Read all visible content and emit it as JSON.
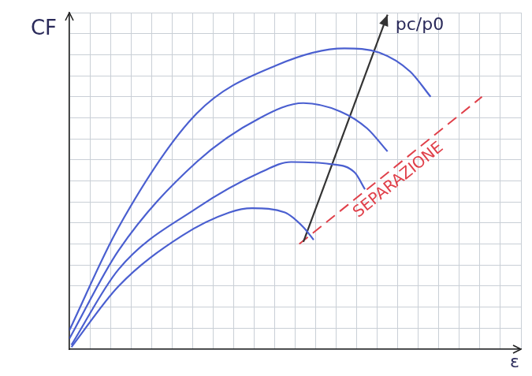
{
  "chart_data": {
    "type": "line",
    "x_label": "ε",
    "y_label": "CF",
    "xlim": [
      0,
      22
    ],
    "ylim": [
      0,
      16
    ],
    "xticks": [
      0,
      1,
      2,
      3,
      4,
      5,
      6,
      7,
      8,
      9,
      10,
      11,
      12,
      13,
      14,
      15,
      16,
      17,
      18,
      19,
      20,
      21,
      22
    ],
    "yticks": [
      0,
      1,
      2,
      3,
      4,
      5,
      6,
      7,
      8,
      9,
      10,
      11,
      12,
      13,
      14,
      15,
      16
    ],
    "grid": true,
    "tick_labels": false,
    "series": [
      {
        "color": "#4a5fd0",
        "x": [
          0,
          2.4,
          6.2,
          10.1,
          13.4,
          15.1,
          16.6,
          17.6
        ],
        "values": [
          0.9,
          5.8,
          11.2,
          13.5,
          14.3,
          14.1,
          13.2,
          12.0
        ]
      },
      {
        "color": "#4a5fd0",
        "x": [
          0,
          2.4,
          6.2,
          9.3,
          11.4,
          13.2,
          14.5,
          15.5
        ],
        "values": [
          0.5,
          4.7,
          8.9,
          11.0,
          11.7,
          11.3,
          10.5,
          9.4
        ]
      },
      {
        "color": "#4a5fd0",
        "x": [
          0.1,
          2.4,
          6.2,
          9.3,
          10.8,
          12.7,
          13.9,
          14.4
        ],
        "values": [
          0.2,
          3.8,
          6.7,
          8.4,
          8.9,
          8.8,
          8.4,
          7.6
        ]
      },
      {
        "color": "#4a5fd0",
        "x": [
          0.1,
          2.4,
          5.5,
          7.8,
          8.9,
          10.5,
          11.4,
          11.9
        ],
        "values": [
          0.1,
          3.0,
          5.4,
          6.5,
          6.7,
          6.5,
          5.8,
          5.2
        ]
      },
      {
        "name": "pc/p0",
        "color": "#333333",
        "marker": "arrow",
        "x": [
          11.4,
          15.5
        ],
        "values": [
          5.1,
          15.9
        ]
      },
      {
        "name": "SEPARAZIONE",
        "color": "#e0404a",
        "line_style": "dashed",
        "x": [
          11.2,
          20.1
        ],
        "values": [
          5.0,
          12.0
        ]
      }
    ]
  }
}
